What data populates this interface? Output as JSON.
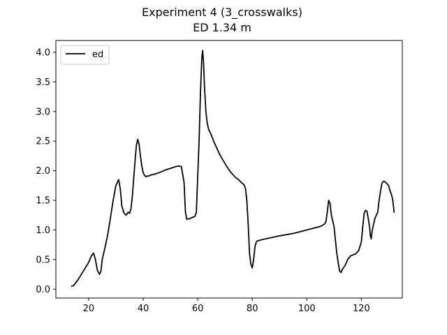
{
  "chart_data": {
    "type": "line",
    "title": "Experiment 4 (3_crosswalks)",
    "subtitle": "ED 1.34 m",
    "xlabel": "",
    "ylabel": "",
    "xlim": [
      8,
      135
    ],
    "ylim": [
      -0.15,
      4.2
    ],
    "xticks": [
      "20",
      "40",
      "60",
      "80",
      "100",
      "120"
    ],
    "yticks": [
      "0.0",
      "0.5",
      "1.0",
      "1.5",
      "2.0",
      "2.5",
      "3.0",
      "3.5",
      "4.0"
    ],
    "grid": false,
    "legend_position": "top-left",
    "series": [
      {
        "name": "ed",
        "color": "#000000",
        "x": [
          13.8,
          14.5,
          16,
          18,
          20,
          21,
          21.8,
          22.5,
          23.2,
          24,
          24.5,
          25,
          26,
          27,
          28,
          29,
          30,
          31,
          31.6,
          32.2,
          33,
          33.8,
          34.5,
          35,
          35.5,
          36,
          36.5,
          37,
          37.5,
          38,
          38.5,
          39,
          39.5,
          40,
          40.5,
          41,
          41.5,
          42,
          43,
          44,
          46,
          48,
          50,
          52,
          53,
          54,
          55,
          55.5,
          56,
          57,
          58,
          59,
          59.5,
          60,
          60.5,
          61,
          61.5,
          61.8,
          62.1,
          62.5,
          63,
          63.5,
          64,
          65,
          66,
          67,
          68,
          70,
          72,
          74,
          75,
          76,
          77,
          77.5,
          78,
          78.5,
          79,
          79.5,
          80,
          80.5,
          81,
          81.5,
          82,
          82.5,
          83,
          85,
          90,
          95,
          100,
          105,
          106.5,
          107,
          107.5,
          108,
          108.5,
          109,
          110,
          110.5,
          111,
          111.5,
          112,
          112.5,
          113,
          114,
          115,
          116,
          117,
          118,
          119,
          120,
          120.5,
          121,
          121.5,
          122,
          122.5,
          123,
          123.3,
          123.6,
          124,
          125,
          126,
          126.5,
          127,
          127.5,
          128,
          128.5,
          129,
          130,
          130.5,
          131,
          131.5,
          132
        ],
        "y": [
          0.05,
          0.06,
          0.15,
          0.3,
          0.45,
          0.56,
          0.61,
          0.5,
          0.32,
          0.25,
          0.3,
          0.5,
          0.7,
          0.92,
          1.2,
          1.5,
          1.75,
          1.85,
          1.7,
          1.4,
          1.28,
          1.25,
          1.3,
          1.28,
          1.35,
          1.55,
          1.85,
          2.15,
          2.42,
          2.53,
          2.45,
          2.25,
          2.08,
          1.97,
          1.92,
          1.9,
          1.91,
          1.91,
          1.93,
          1.94,
          1.97,
          2.01,
          2.04,
          2.07,
          2.08,
          2.07,
          1.8,
          1.3,
          1.18,
          1.19,
          1.21,
          1.23,
          1.3,
          1.9,
          2.5,
          3.3,
          3.9,
          4.03,
          3.85,
          3.4,
          3.0,
          2.8,
          2.7,
          2.6,
          2.48,
          2.38,
          2.28,
          2.12,
          1.98,
          1.88,
          1.85,
          1.8,
          1.76,
          1.7,
          1.5,
          1.1,
          0.6,
          0.42,
          0.36,
          0.5,
          0.72,
          0.8,
          0.82,
          0.82,
          0.83,
          0.85,
          0.9,
          0.94,
          1.0,
          1.06,
          1.1,
          1.14,
          1.3,
          1.5,
          1.45,
          1.25,
          1.05,
          0.82,
          0.6,
          0.45,
          0.31,
          0.28,
          0.33,
          0.4,
          0.5,
          0.56,
          0.58,
          0.6,
          0.65,
          0.8,
          1.05,
          1.28,
          1.33,
          1.32,
          1.2,
          1.05,
          0.9,
          0.85,
          1.0,
          1.2,
          1.3,
          1.5,
          1.65,
          1.78,
          1.82,
          1.82,
          1.8,
          1.75,
          1.66,
          1.6,
          1.51,
          1.3
        ]
      }
    ]
  }
}
